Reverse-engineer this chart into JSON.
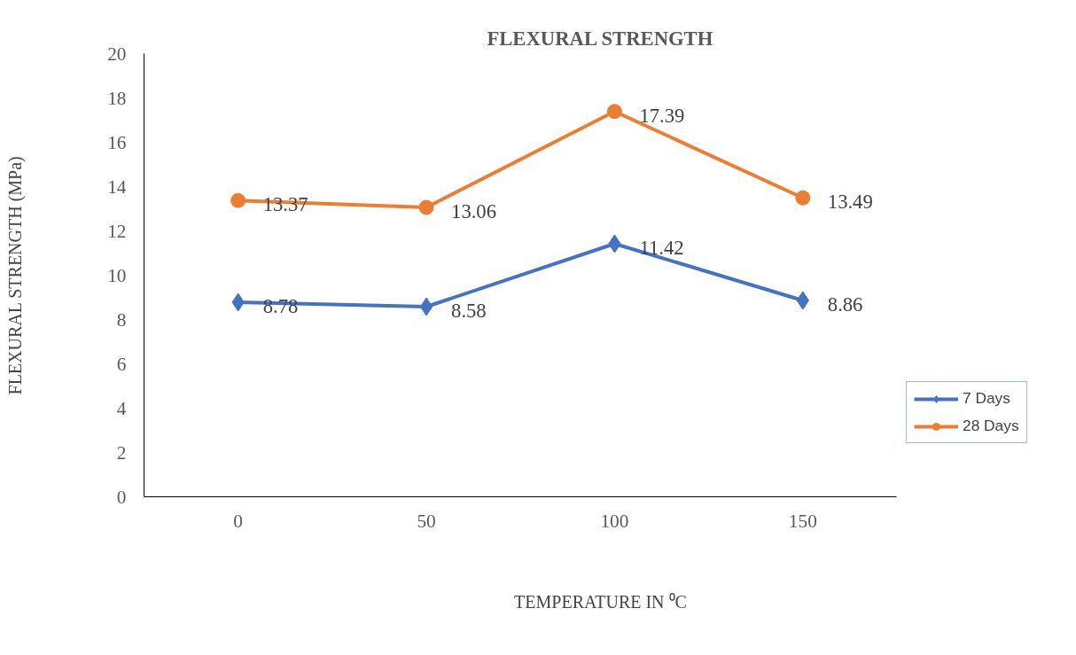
{
  "chart_data": {
    "type": "line",
    "title": "FLEXURAL STRENGTH",
    "xlabel": "TEMPERATURE IN ⁰C",
    "ylabel": "FLEXURAL STRENGTH (MPa)",
    "categories": [
      "0",
      "50",
      "100",
      "150"
    ],
    "series": [
      {
        "name": "7 Days",
        "color": "#4472c4",
        "marker": "diamond",
        "values": [
          8.78,
          8.58,
          11.42,
          8.86
        ]
      },
      {
        "name": "28 Days",
        "color": "#ed7d31",
        "marker": "circle",
        "values": [
          13.37,
          13.06,
          17.39,
          13.49
        ]
      }
    ],
    "ylim": [
      0,
      20
    ],
    "yticks": [
      0,
      2,
      4,
      6,
      8,
      10,
      12,
      14,
      16,
      18,
      20
    ],
    "grid": false,
    "legend": "right",
    "data_labels": true
  }
}
